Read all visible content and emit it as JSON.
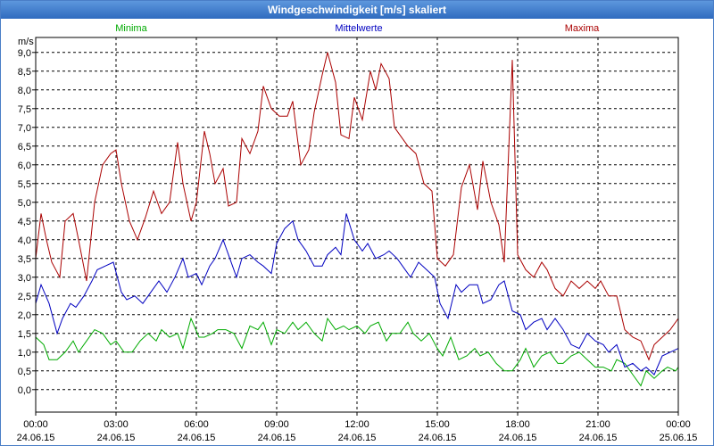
{
  "window": {
    "title": "Windgeschwindigkeit [m/s] skaliert"
  },
  "colors": {
    "minima": "#00aa00",
    "mittelwerte": "#0000c0",
    "maxima": "#aa0000",
    "titlebar": "#3f7ccf"
  },
  "chart_data": {
    "type": "line",
    "ylabel": "m/s",
    "ylim": [
      -0.6,
      9.4
    ],
    "yticks": [
      "0,0",
      "0,5",
      "1,0",
      "1,5",
      "2,0",
      "2,5",
      "3,0",
      "3,5",
      "4,0",
      "4,5",
      "5,0",
      "5,5",
      "6,0",
      "6,5",
      "7,0",
      "7,5",
      "8,0",
      "8,5",
      "9,0"
    ],
    "xlim": [
      0,
      24
    ],
    "xticks": [
      {
        "time": "00:00",
        "date": "24.06.15",
        "h": 0
      },
      {
        "time": "03:00",
        "date": "24.06.15",
        "h": 3
      },
      {
        "time": "06:00",
        "date": "24.06.15",
        "h": 6
      },
      {
        "time": "09:00",
        "date": "24.06.15",
        "h": 9
      },
      {
        "time": "12:00",
        "date": "24.06.15",
        "h": 12
      },
      {
        "time": "15:00",
        "date": "24.06.15",
        "h": 15
      },
      {
        "time": "18:00",
        "date": "24.06.15",
        "h": 18
      },
      {
        "time": "21:00",
        "date": "24.06.15",
        "h": 21
      },
      {
        "time": "00:00",
        "date": "25.06.15",
        "h": 24
      }
    ],
    "grid": true,
    "legend": {
      "minima": "Minima",
      "mittelwerte": "Mittelwerte",
      "maxima": "Maxima"
    },
    "series": [
      {
        "name": "Minima",
        "color": "#00aa00",
        "points": [
          [
            0,
            1.4
          ],
          [
            0.3,
            1.2
          ],
          [
            0.5,
            0.8
          ],
          [
            0.8,
            0.8
          ],
          [
            1.1,
            1.0
          ],
          [
            1.4,
            1.3
          ],
          [
            1.6,
            1.0
          ],
          [
            1.9,
            1.3
          ],
          [
            2.2,
            1.6
          ],
          [
            2.5,
            1.5
          ],
          [
            2.8,
            1.2
          ],
          [
            3.0,
            1.3
          ],
          [
            3.3,
            1.0
          ],
          [
            3.6,
            1.0
          ],
          [
            3.9,
            1.3
          ],
          [
            4.2,
            1.5
          ],
          [
            4.5,
            1.3
          ],
          [
            4.7,
            1.6
          ],
          [
            5.0,
            1.4
          ],
          [
            5.3,
            1.5
          ],
          [
            5.5,
            1.1
          ],
          [
            5.8,
            1.9
          ],
          [
            6.1,
            1.4
          ],
          [
            6.3,
            1.4
          ],
          [
            6.6,
            1.5
          ],
          [
            6.8,
            1.6
          ],
          [
            7.1,
            1.6
          ],
          [
            7.4,
            1.5
          ],
          [
            7.7,
            1.1
          ],
          [
            8.0,
            1.7
          ],
          [
            8.3,
            1.6
          ],
          [
            8.5,
            1.8
          ],
          [
            8.8,
            1.2
          ],
          [
            9.0,
            1.6
          ],
          [
            9.3,
            1.5
          ],
          [
            9.6,
            1.8
          ],
          [
            9.8,
            1.6
          ],
          [
            10.1,
            1.8
          ],
          [
            10.4,
            1.5
          ],
          [
            10.7,
            1.3
          ],
          [
            10.9,
            1.9
          ],
          [
            11.2,
            1.6
          ],
          [
            11.5,
            1.7
          ],
          [
            11.7,
            1.6
          ],
          [
            12.0,
            1.7
          ],
          [
            12.3,
            1.5
          ],
          [
            12.5,
            1.7
          ],
          [
            12.8,
            1.8
          ],
          [
            13.1,
            1.3
          ],
          [
            13.3,
            1.5
          ],
          [
            13.6,
            1.5
          ],
          [
            13.9,
            1.8
          ],
          [
            14.1,
            1.5
          ],
          [
            14.4,
            1.3
          ],
          [
            14.7,
            1.5
          ],
          [
            15.0,
            1.1
          ],
          [
            15.2,
            0.9
          ],
          [
            15.5,
            1.4
          ],
          [
            15.8,
            0.8
          ],
          [
            16.1,
            0.9
          ],
          [
            16.4,
            1.1
          ],
          [
            16.6,
            0.9
          ],
          [
            16.9,
            1.0
          ],
          [
            17.2,
            0.7
          ],
          [
            17.5,
            0.5
          ],
          [
            17.8,
            0.5
          ],
          [
            18.1,
            0.8
          ],
          [
            18.3,
            1.1
          ],
          [
            18.6,
            0.6
          ],
          [
            18.9,
            0.9
          ],
          [
            19.2,
            1.0
          ],
          [
            19.5,
            0.7
          ],
          [
            19.7,
            0.7
          ],
          [
            20.0,
            0.9
          ],
          [
            20.3,
            1.0
          ],
          [
            20.6,
            0.8
          ],
          [
            20.9,
            0.6
          ],
          [
            21.2,
            0.6
          ],
          [
            21.5,
            0.5
          ],
          [
            21.7,
            0.8
          ],
          [
            22.0,
            0.7
          ],
          [
            22.3,
            0.4
          ],
          [
            22.6,
            0.1
          ],
          [
            22.8,
            0.5
          ],
          [
            23.1,
            0.3
          ],
          [
            23.4,
            0.5
          ],
          [
            23.6,
            0.6
          ],
          [
            23.9,
            0.5
          ],
          [
            24.0,
            0.6
          ]
        ]
      },
      {
        "name": "Mittelwerte",
        "color": "#0000c0",
        "points": [
          [
            0,
            2.3
          ],
          [
            0.2,
            2.8
          ],
          [
            0.5,
            2.3
          ],
          [
            0.8,
            1.5
          ],
          [
            1.0,
            1.9
          ],
          [
            1.3,
            2.3
          ],
          [
            1.5,
            2.2
          ],
          [
            1.8,
            2.5
          ],
          [
            2.1,
            2.9
          ],
          [
            2.3,
            3.2
          ],
          [
            2.6,
            3.3
          ],
          [
            2.9,
            3.4
          ],
          [
            3.2,
            2.6
          ],
          [
            3.4,
            2.4
          ],
          [
            3.7,
            2.5
          ],
          [
            4.0,
            2.3
          ],
          [
            4.3,
            2.6
          ],
          [
            4.6,
            2.9
          ],
          [
            4.9,
            2.6
          ],
          [
            5.2,
            3.0
          ],
          [
            5.5,
            3.5
          ],
          [
            5.7,
            3.0
          ],
          [
            6.0,
            3.1
          ],
          [
            6.2,
            2.8
          ],
          [
            6.5,
            3.3
          ],
          [
            6.7,
            3.5
          ],
          [
            7.0,
            4.0
          ],
          [
            7.2,
            3.6
          ],
          [
            7.5,
            3.0
          ],
          [
            7.7,
            3.5
          ],
          [
            8.0,
            3.6
          ],
          [
            8.3,
            3.4
          ],
          [
            8.5,
            3.3
          ],
          [
            8.8,
            3.1
          ],
          [
            9.0,
            3.9
          ],
          [
            9.3,
            4.3
          ],
          [
            9.6,
            4.5
          ],
          [
            9.8,
            4.0
          ],
          [
            10.1,
            3.7
          ],
          [
            10.4,
            3.3
          ],
          [
            10.7,
            3.3
          ],
          [
            10.9,
            3.6
          ],
          [
            11.2,
            3.8
          ],
          [
            11.4,
            3.6
          ],
          [
            11.6,
            4.7
          ],
          [
            11.9,
            4.0
          ],
          [
            12.2,
            3.7
          ],
          [
            12.4,
            3.9
          ],
          [
            12.7,
            3.5
          ],
          [
            13.0,
            3.6
          ],
          [
            13.2,
            3.7
          ],
          [
            13.5,
            3.5
          ],
          [
            13.8,
            3.2
          ],
          [
            14.0,
            3.0
          ],
          [
            14.3,
            3.4
          ],
          [
            14.6,
            3.2
          ],
          [
            14.9,
            3.0
          ],
          [
            15.1,
            2.3
          ],
          [
            15.4,
            1.9
          ],
          [
            15.7,
            2.8
          ],
          [
            15.9,
            2.6
          ],
          [
            16.2,
            2.8
          ],
          [
            16.5,
            2.8
          ],
          [
            16.7,
            2.3
          ],
          [
            17.0,
            2.4
          ],
          [
            17.3,
            2.8
          ],
          [
            17.5,
            2.9
          ],
          [
            17.8,
            2.1
          ],
          [
            18.1,
            2.0
          ],
          [
            18.3,
            1.6
          ],
          [
            18.6,
            1.8
          ],
          [
            18.9,
            1.9
          ],
          [
            19.1,
            1.6
          ],
          [
            19.4,
            1.9
          ],
          [
            19.7,
            1.6
          ],
          [
            20.0,
            1.2
          ],
          [
            20.3,
            1.1
          ],
          [
            20.6,
            1.5
          ],
          [
            20.9,
            1.3
          ],
          [
            21.2,
            1.2
          ],
          [
            21.4,
            1.0
          ],
          [
            21.7,
            1.2
          ],
          [
            22.0,
            0.6
          ],
          [
            22.3,
            0.7
          ],
          [
            22.6,
            0.5
          ],
          [
            22.8,
            0.6
          ],
          [
            23.1,
            0.4
          ],
          [
            23.4,
            0.9
          ],
          [
            23.7,
            1.0
          ],
          [
            24.0,
            1.1
          ]
        ]
      },
      {
        "name": "Maxima",
        "color": "#aa0000",
        "points": [
          [
            0,
            3.5
          ],
          [
            0.2,
            4.7
          ],
          [
            0.4,
            4.0
          ],
          [
            0.6,
            3.4
          ],
          [
            0.9,
            3.0
          ],
          [
            1.1,
            4.5
          ],
          [
            1.4,
            4.7
          ],
          [
            1.6,
            4.0
          ],
          [
            1.9,
            2.9
          ],
          [
            2.2,
            5.0
          ],
          [
            2.5,
            6.0
          ],
          [
            2.8,
            6.3
          ],
          [
            3.0,
            6.4
          ],
          [
            3.2,
            5.5
          ],
          [
            3.5,
            4.5
          ],
          [
            3.8,
            4.0
          ],
          [
            4.1,
            4.6
          ],
          [
            4.4,
            5.3
          ],
          [
            4.7,
            4.7
          ],
          [
            5.0,
            5.0
          ],
          [
            5.3,
            6.6
          ],
          [
            5.5,
            5.5
          ],
          [
            5.8,
            4.5
          ],
          [
            6.0,
            5.0
          ],
          [
            6.3,
            6.9
          ],
          [
            6.5,
            6.3
          ],
          [
            6.7,
            5.5
          ],
          [
            7.0,
            5.9
          ],
          [
            7.2,
            4.9
          ],
          [
            7.5,
            5.0
          ],
          [
            7.7,
            6.7
          ],
          [
            8.0,
            6.3
          ],
          [
            8.3,
            6.9
          ],
          [
            8.5,
            8.1
          ],
          [
            8.8,
            7.5
          ],
          [
            9.1,
            7.3
          ],
          [
            9.4,
            7.3
          ],
          [
            9.6,
            7.7
          ],
          [
            9.9,
            6.0
          ],
          [
            10.2,
            6.4
          ],
          [
            10.4,
            7.4
          ],
          [
            10.7,
            8.4
          ],
          [
            10.9,
            9.0
          ],
          [
            11.2,
            8.2
          ],
          [
            11.4,
            6.8
          ],
          [
            11.7,
            6.7
          ],
          [
            11.9,
            7.8
          ],
          [
            12.2,
            7.2
          ],
          [
            12.5,
            8.5
          ],
          [
            12.7,
            8.0
          ],
          [
            12.9,
            8.7
          ],
          [
            13.2,
            8.3
          ],
          [
            13.4,
            7.0
          ],
          [
            13.7,
            6.7
          ],
          [
            13.9,
            6.5
          ],
          [
            14.2,
            6.3
          ],
          [
            14.5,
            5.5
          ],
          [
            14.8,
            5.3
          ],
          [
            15.0,
            3.5
          ],
          [
            15.3,
            3.3
          ],
          [
            15.6,
            3.6
          ],
          [
            15.9,
            5.4
          ],
          [
            16.2,
            6.0
          ],
          [
            16.5,
            4.8
          ],
          [
            16.7,
            6.1
          ],
          [
            17.0,
            5.0
          ],
          [
            17.3,
            4.4
          ],
          [
            17.5,
            3.4
          ],
          [
            17.8,
            8.8
          ],
          [
            18.0,
            3.6
          ],
          [
            18.3,
            3.2
          ],
          [
            18.6,
            3.0
          ],
          [
            18.9,
            3.4
          ],
          [
            19.1,
            3.2
          ],
          [
            19.4,
            2.7
          ],
          [
            19.7,
            2.5
          ],
          [
            20.0,
            2.9
          ],
          [
            20.3,
            2.7
          ],
          [
            20.6,
            2.9
          ],
          [
            20.9,
            2.7
          ],
          [
            21.1,
            2.9
          ],
          [
            21.4,
            2.5
          ],
          [
            21.7,
            2.5
          ],
          [
            22.0,
            1.6
          ],
          [
            22.3,
            1.4
          ],
          [
            22.6,
            1.3
          ],
          [
            22.9,
            0.8
          ],
          [
            23.1,
            1.2
          ],
          [
            23.4,
            1.4
          ],
          [
            23.7,
            1.6
          ],
          [
            24.0,
            1.9
          ]
        ]
      }
    ]
  }
}
